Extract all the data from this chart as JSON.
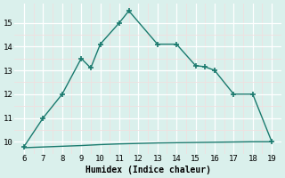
{
  "upper_x": [
    6,
    7,
    8,
    9,
    9.5,
    10,
    11,
    11.5,
    13,
    14,
    15,
    15.5,
    16,
    17,
    18,
    19
  ],
  "upper_y": [
    9.8,
    11,
    12,
    13.5,
    13.1,
    14.1,
    15.0,
    15.5,
    14.1,
    14.1,
    13.2,
    13.15,
    13.0,
    12.0,
    12.0,
    10.0
  ],
  "lower_x": [
    6,
    7,
    8,
    9,
    10,
    11,
    12,
    13,
    14,
    15,
    16,
    17,
    18,
    19
  ],
  "lower_y": [
    9.75,
    9.78,
    9.81,
    9.84,
    9.88,
    9.91,
    9.93,
    9.95,
    9.96,
    9.97,
    9.98,
    9.99,
    10.0,
    10.0
  ],
  "line_color": "#1a7a6e",
  "bg_color": "#daf0ec",
  "grid_major_color": "#ffffff",
  "grid_minor_color": "#f0e0e0",
  "xlabel": "Humidex (Indice chaleur)",
  "xlim": [
    5.5,
    19.5
  ],
  "ylim": [
    9.5,
    15.8
  ],
  "xticks": [
    6,
    7,
    8,
    9,
    10,
    11,
    12,
    13,
    14,
    15,
    16,
    17,
    18,
    19
  ],
  "yticks": [
    10,
    11,
    12,
    13,
    14,
    15
  ],
  "marker": "+",
  "markersize": 5,
  "linewidth": 1.0
}
